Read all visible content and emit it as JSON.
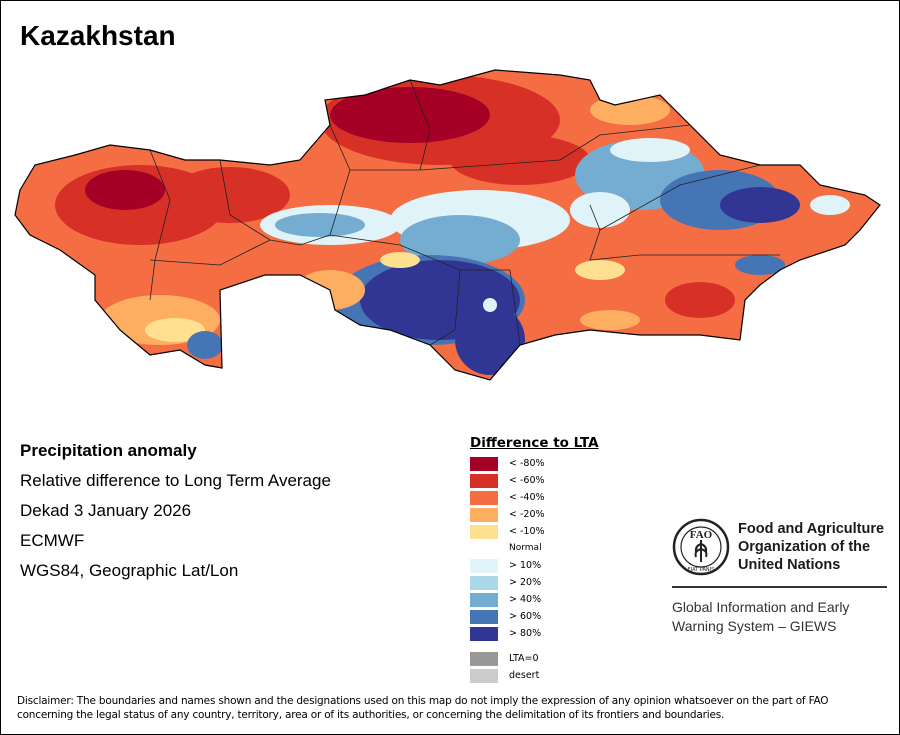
{
  "title": "Kazakhstan",
  "info": {
    "heading": "Precipitation anomaly",
    "subtitle": "Relative difference to Long Term Average",
    "period": "Dekad 3 January 2026",
    "source": "ECMWF",
    "projection": "WGS84, Geographic Lat/Lon"
  },
  "legend": {
    "title": "Difference to LTA",
    "items": [
      {
        "label": "< -80%",
        "color": "#a50026"
      },
      {
        "label": "< -60%",
        "color": "#d73027"
      },
      {
        "label": "< -40%",
        "color": "#f46d43"
      },
      {
        "label": "< -20%",
        "color": "#fdae61"
      },
      {
        "label": "< -10%",
        "color": "#fee090"
      },
      {
        "label": "Normal",
        "color": "#ffffff"
      },
      {
        "label": "> 10%",
        "color": "#e0f3f8"
      },
      {
        "label": "> 20%",
        "color": "#abd9e9"
      },
      {
        "label": "> 40%",
        "color": "#74add1"
      },
      {
        "label": "> 60%",
        "color": "#4575b4"
      },
      {
        "label": "> 80%",
        "color": "#313695"
      }
    ],
    "extra": [
      {
        "label": "LTA=0",
        "color": "#999999"
      },
      {
        "label": "desert",
        "color": "#cccccc"
      }
    ]
  },
  "org": {
    "name_line1": "Food and Agriculture",
    "name_line2": "Organization of the",
    "name_line3": "United Nations",
    "logo_text": "FAO",
    "logo_motto": "FIAT PANIS",
    "system_line1": "Global Information and Early",
    "system_line2": "Warning System – GIEWS"
  },
  "disclaimer_line1": "Disclaimer: The boundaries and names shown and the designations used on this map do not imply the expression of any opinion whatsoever on the part of FAO",
  "disclaimer_line2": "concerning the legal status of any country, territory, area or of its authorities, or concerning the delimitation of its frontiers and boundaries."
}
